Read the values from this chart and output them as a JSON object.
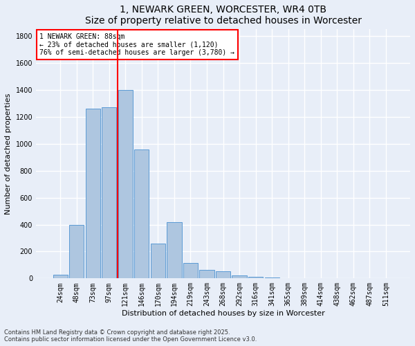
{
  "title": "1, NEWARK GREEN, WORCESTER, WR4 0TB",
  "subtitle": "Size of property relative to detached houses in Worcester",
  "xlabel": "Distribution of detached houses by size in Worcester",
  "ylabel": "Number of detached properties",
  "categories": [
    "24sqm",
    "48sqm",
    "73sqm",
    "97sqm",
    "121sqm",
    "146sqm",
    "170sqm",
    "194sqm",
    "219sqm",
    "243sqm",
    "268sqm",
    "292sqm",
    "316sqm",
    "341sqm",
    "365sqm",
    "389sqm",
    "414sqm",
    "438sqm",
    "462sqm",
    "487sqm",
    "511sqm"
  ],
  "values": [
    30,
    400,
    1260,
    1270,
    1400,
    960,
    260,
    420,
    115,
    65,
    55,
    20,
    10,
    5,
    2,
    2,
    1,
    1,
    0,
    0,
    0
  ],
  "bar_color": "#aec6e0",
  "bar_edge_color": "#5b9bd5",
  "vline_color": "red",
  "vline_pos": 3.5,
  "annotation_text": "1 NEWARK GREEN: 88sqm\n← 23% of detached houses are smaller (1,120)\n76% of semi-detached houses are larger (3,780) →",
  "annotation_box_color": "red",
  "annotation_bg": "white",
  "ylim": [
    0,
    1850
  ],
  "yticks": [
    0,
    200,
    400,
    600,
    800,
    1000,
    1200,
    1400,
    1600,
    1800
  ],
  "footnote": "Contains HM Land Registry data © Crown copyright and database right 2025.\nContains public sector information licensed under the Open Government Licence v3.0.",
  "bg_color": "#e8eef8",
  "grid_color": "white",
  "title_fontsize": 10,
  "axis_label_fontsize": 8,
  "tick_fontsize": 7,
  "footnote_fontsize": 6,
  "annotation_fontsize": 7
}
